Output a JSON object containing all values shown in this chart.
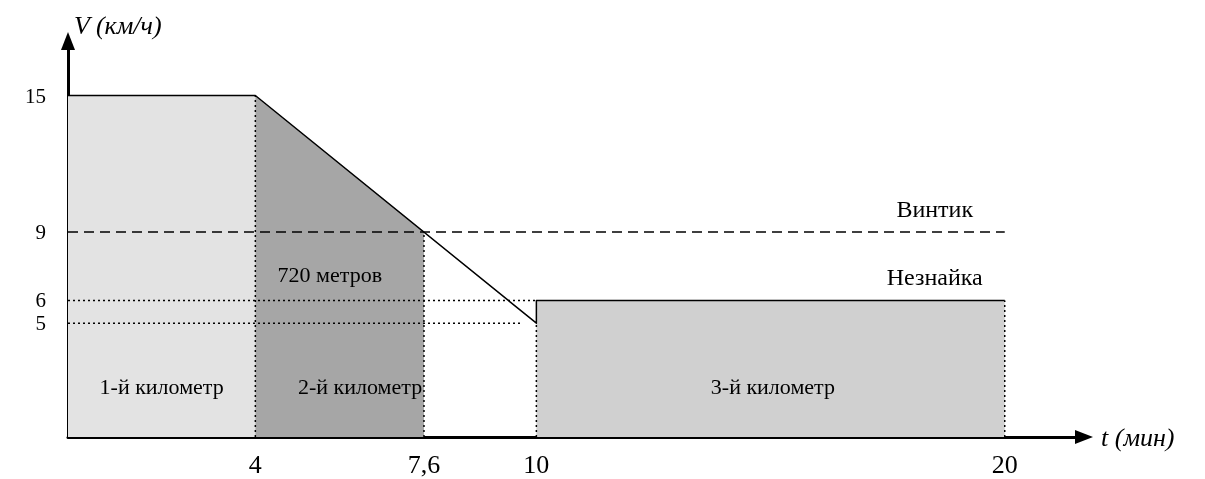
{
  "chart_data": {
    "type": "line",
    "xlabel": "t (мин)",
    "ylabel": "V (км/ч)",
    "xlim": [
      0,
      21.5
    ],
    "ylim": [
      0,
      17
    ],
    "xticks": [
      4,
      {
        "value": 7.6,
        "label": "7,6"
      },
      10,
      20
    ],
    "yticks": [
      5,
      6,
      9,
      15
    ],
    "grid": false,
    "legend": false,
    "marker": "none",
    "series": [
      {
        "type": "area",
        "color": "#e3e3e3",
        "x": [
          0,
          4
        ],
        "values": [
          15,
          15
        ]
      },
      {
        "type": "area",
        "color": "#a6a6a6",
        "x": [
          4,
          7.6
        ],
        "values": [
          15,
          9
        ]
      },
      {
        "type": "area",
        "color": "#d0d0d0",
        "x": [
          10,
          20
        ],
        "values": [
          6,
          6
        ]
      },
      {
        "color": "#000000",
        "line_style": "dotted",
        "x": [
          0,
          10
        ],
        "values": [
          6,
          6
        ]
      },
      {
        "color": "#000000",
        "line_style": "dotted",
        "x": [
          0,
          9.7
        ],
        "values": [
          5,
          5
        ]
      },
      {
        "color": "#000000",
        "line_style": "dotted",
        "x": [
          4,
          4
        ],
        "values": [
          0,
          15
        ]
      },
      {
        "color": "#000000",
        "line_style": "dotted",
        "x": [
          7.6,
          7.6
        ],
        "values": [
          0,
          9
        ]
      },
      {
        "color": "#000000",
        "line_style": "dotted",
        "x": [
          10,
          10
        ],
        "values": [
          0,
          5
        ]
      },
      {
        "color": "#000000",
        "line_style": "dotted",
        "x": [
          20,
          20
        ],
        "values": [
          0,
          6
        ]
      },
      {
        "name": "Винтик",
        "color": "#000000",
        "line_style": "dashed",
        "x": [
          0,
          20
        ],
        "values": [
          9,
          9
        ]
      },
      {
        "name": "Незнайка",
        "color": "#000000",
        "line_style": "solid",
        "x": [
          0,
          4,
          10,
          10,
          20
        ],
        "values": [
          15,
          15,
          5,
          6,
          6
        ]
      }
    ],
    "annotations": [
      "1-й километр",
      "2-й километр",
      "3-й километр",
      "720 метров"
    ]
  }
}
